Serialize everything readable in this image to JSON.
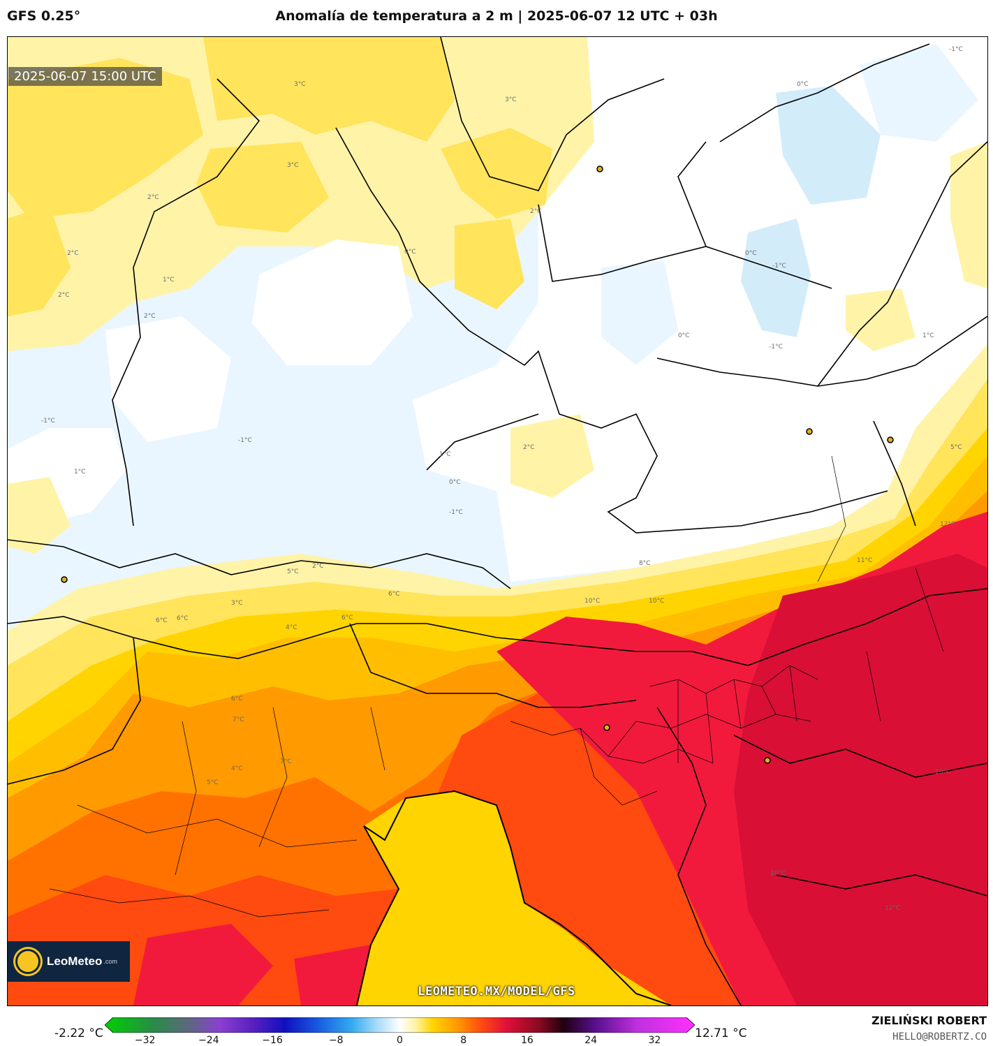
{
  "header": {
    "model": "GFS 0.25°",
    "title": "Anomalía de temperatura a 2 m | 2025-06-07 12 UTC + 03h"
  },
  "map": {
    "valid_time": "2025-06-07 15:00 UTC",
    "watermark": "LEOMETEO.MX/MODEL/GFS",
    "contour_labels": [
      "3°C",
      "3°C",
      "3°C",
      "2°C",
      "2°C",
      "2°C",
      "2°C",
      "1°C",
      "1°C",
      "0°C",
      "-1°C",
      "-1°C",
      "-1°C",
      "-1°C",
      "0°C",
      "0°C",
      "0°C",
      "-1°C",
      "2°C",
      "2°C",
      "1°C",
      "0°C",
      "-1°C",
      "5°C",
      "6°C",
      "4°C",
      "6°C",
      "6°C",
      "7°C",
      "6°C",
      "4°C",
      "5°C",
      "7°C",
      "8°C",
      "10°C",
      "6°C",
      "11°C",
      "12°C",
      "10°C",
      "12°C",
      "10°C",
      "10°C",
      "5°C",
      "3°C",
      "2°C",
      "1°C"
    ],
    "colors": {
      "cold_light": "#eaf6ff",
      "cold": "#d3ecfa",
      "neutral": "#ffffff",
      "warm_pale": "#fff3a8",
      "warm_1": "#ffe45c",
      "warm_2": "#ffd400",
      "warm_3": "#ffbf00",
      "warm_4": "#ff9a00",
      "warm_5": "#ff7200",
      "warm_6": "#ff4a10",
      "warm_7": "#f21a3c",
      "warm_8": "#d90f35"
    }
  },
  "colorbar": {
    "min_label": "-2.22 °C",
    "max_label": "12.71 °C",
    "ticks": [
      "−32",
      "−24",
      "−16",
      "−8",
      "0",
      "8",
      "16",
      "24",
      "32"
    ],
    "tick_values": [
      -32,
      -24,
      -16,
      -8,
      0,
      8,
      16,
      24,
      32
    ],
    "range": [
      -36,
      36
    ],
    "stops": [
      {
        "v": -36,
        "c": "#00d000"
      },
      {
        "v": -30,
        "c": "#2a8a4a"
      },
      {
        "v": -26,
        "c": "#5a6a7a"
      },
      {
        "v": -22,
        "c": "#8a40d0"
      },
      {
        "v": -18,
        "c": "#5a20c0"
      },
      {
        "v": -14,
        "c": "#1010c0"
      },
      {
        "v": -10,
        "c": "#1a5ae0"
      },
      {
        "v": -6,
        "c": "#30a8f0"
      },
      {
        "v": -3,
        "c": "#a0d8f8"
      },
      {
        "v": 0,
        "c": "#ffffff"
      },
      {
        "v": 2,
        "c": "#fff3a0"
      },
      {
        "v": 4,
        "c": "#ffd400"
      },
      {
        "v": 7,
        "c": "#ff9a00"
      },
      {
        "v": 10,
        "c": "#ff4a10"
      },
      {
        "v": 13,
        "c": "#e0103a"
      },
      {
        "v": 17,
        "c": "#8a0a20"
      },
      {
        "v": 20,
        "c": "#200010"
      },
      {
        "v": 24,
        "c": "#5a1090"
      },
      {
        "v": 29,
        "c": "#c030e0"
      },
      {
        "v": 36,
        "c": "#ff30ff"
      }
    ]
  },
  "credits": {
    "author": "ZIELIŃSKI ROBERT",
    "email": "HELLO@ROBERTZ.CO",
    "logo_text": "LeoMeteo",
    "logo_domain": ".com"
  }
}
